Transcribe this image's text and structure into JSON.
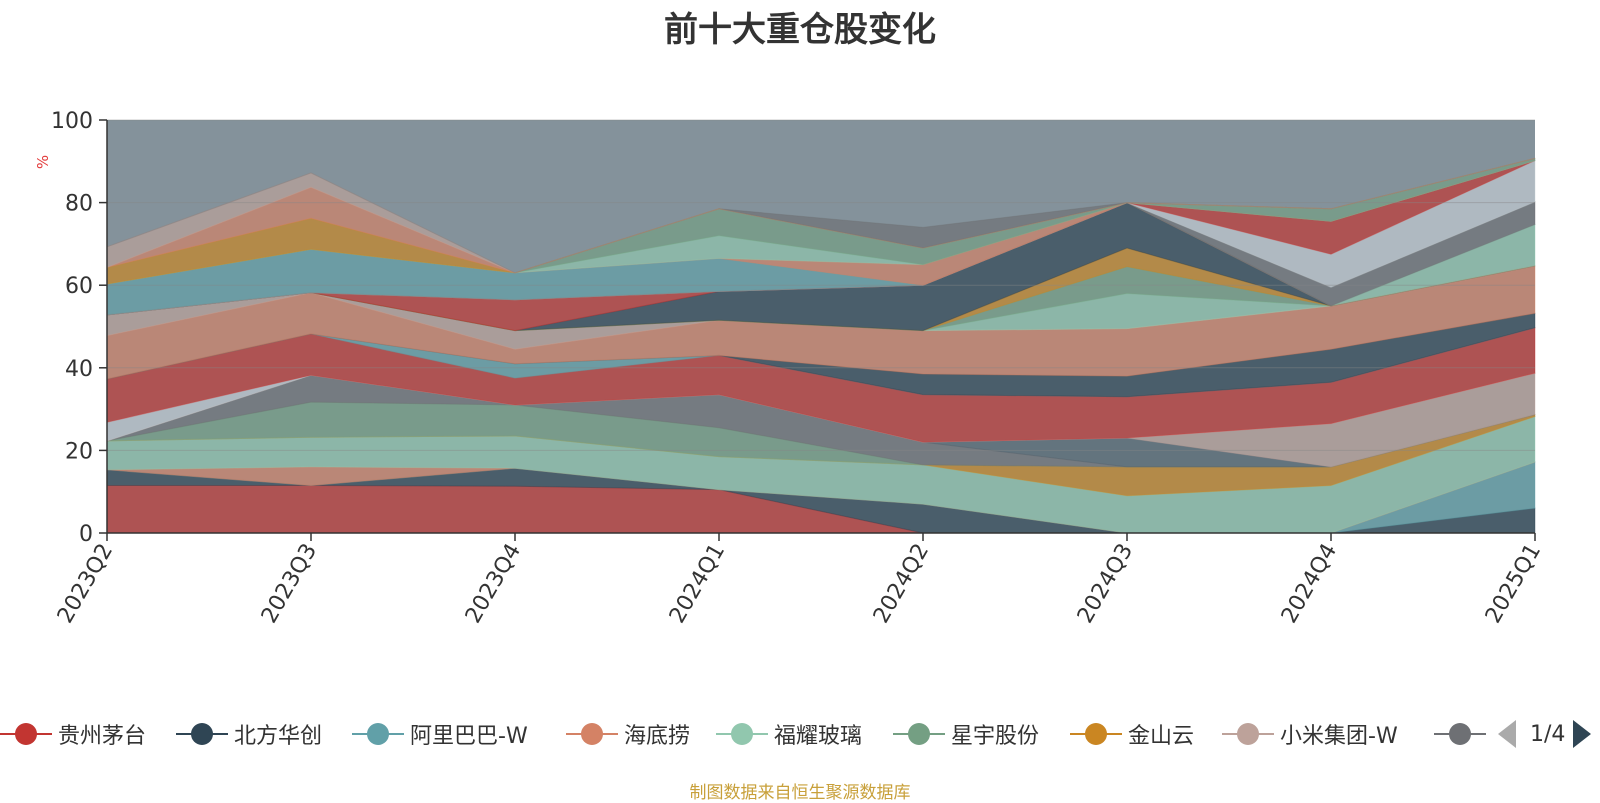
{
  "title": "前十大重仓股变化",
  "footer": "制图数据来自恒生聚源数据库",
  "pager": {
    "text": "1/4"
  },
  "legend": [
    {
      "name": "贵州茅台",
      "color": "#c23531"
    },
    {
      "name": "北方华创",
      "color": "#2f4554"
    },
    {
      "name": "阿里巴巴-W",
      "color": "#61a0a8"
    },
    {
      "name": "海底捞",
      "color": "#d48265"
    },
    {
      "name": "福耀玻璃",
      "color": "#91c7ae"
    },
    {
      "name": "星宇股份",
      "color": "#749f83"
    },
    {
      "name": "金山云",
      "color": "#ca8622"
    },
    {
      "name": "小米集团-W",
      "color": "#bda29a"
    },
    {
      "name": "",
      "color": "#6e7074"
    }
  ],
  "chart_data": {
    "type": "area",
    "stacked": true,
    "title": "前十大重仓股变化",
    "ylabel": "%",
    "ylim": [
      0,
      100
    ],
    "yticks": [
      0,
      20,
      40,
      60,
      80,
      100
    ],
    "grid": true,
    "categories": [
      "2023Q2",
      "2023Q3",
      "2023Q4",
      "2024Q1",
      "2024Q2",
      "2024Q3",
      "2024Q4",
      "2025Q1"
    ],
    "layers": [
      {
        "color": "#c23531",
        "values": [
          11.5,
          11.5,
          11.3,
          10.5,
          0,
          0,
          0,
          0
        ]
      },
      {
        "color": "#2f4554",
        "values": [
          3.8,
          0,
          4.4,
          0,
          7.0,
          0,
          0,
          6.0
        ]
      },
      {
        "color": "#61a0a8",
        "values": [
          0,
          0,
          0,
          0,
          0,
          0,
          0,
          11.2
        ]
      },
      {
        "color": "#d48265",
        "values": [
          0,
          4.5,
          0,
          0,
          0,
          0,
          0,
          0
        ]
      },
      {
        "color": "#91c7ae",
        "values": [
          7.0,
          7.2,
          7.8,
          8.0,
          9.5,
          9.0,
          11.5,
          11.0
        ]
      },
      {
        "color": "#ca8622",
        "values": [
          0,
          0,
          0,
          0,
          0,
          7.0,
          4.5,
          0.5
        ]
      },
      {
        "color": "#749f83",
        "values": [
          0,
          8.5,
          7.5,
          7.0,
          0,
          0,
          0,
          0
        ]
      },
      {
        "color": "#6e7074",
        "values": [
          0,
          6.5,
          0,
          8.0,
          5.5,
          0,
          0,
          0
        ]
      },
      {
        "color": "#546570",
        "values": [
          0,
          0,
          0,
          0,
          0,
          7.0,
          0,
          0
        ]
      },
      {
        "color": "#bda29a",
        "values": [
          0,
          0,
          0,
          0,
          0,
          0,
          10.5,
          10.0
        ]
      },
      {
        "color": "#c4ccd3",
        "values": [
          4.5,
          0,
          0,
          0,
          0,
          0,
          0,
          0
        ]
      },
      {
        "color": "#c23531",
        "values": [
          10.5,
          10.0,
          6.5,
          9.5,
          11.5,
          10.0,
          10.0,
          11.0
        ]
      },
      {
        "color": "#61a0a8",
        "values": [
          0,
          0,
          3.5,
          0,
          0,
          0,
          0,
          0
        ]
      },
      {
        "color": "#2f4554",
        "values": [
          0,
          0,
          0,
          0,
          5.0,
          5.0,
          8.0,
          3.5
        ]
      },
      {
        "color": "#d48265",
        "values": [
          10.5,
          10.0,
          3.5,
          8.5,
          10.5,
          11.5,
          10.5,
          11.5
        ]
      },
      {
        "color": "#bda29a",
        "values": [
          5.0,
          0,
          4.5,
          0,
          0,
          0,
          0,
          0
        ]
      },
      {
        "color": "#91c7ae",
        "values": [
          0,
          0,
          0,
          0,
          0,
          8.5,
          0,
          0
        ]
      },
      {
        "color": "#749f83",
        "values": [
          0,
          0,
          0,
          0,
          0,
          6.5,
          0,
          0
        ]
      },
      {
        "color": "#ca8622",
        "values": [
          0,
          0,
          0,
          0,
          0,
          4.5,
          0,
          0
        ]
      },
      {
        "color": "#2f4554",
        "values": [
          0,
          0,
          0,
          7.0,
          11.0,
          11.0,
          0,
          0
        ]
      },
      {
        "color": "#c23531",
        "values": [
          0,
          0,
          7.5,
          0,
          0,
          0,
          0,
          0
        ]
      },
      {
        "color": "#91c7ae",
        "values": [
          0,
          0,
          0,
          0,
          0,
          0,
          0,
          10.0
        ]
      },
      {
        "color": "#6e7074",
        "values": [
          0,
          0,
          0,
          0,
          0,
          0,
          4.5,
          5.5
        ]
      },
      {
        "color": "#c4ccd3",
        "values": [
          0,
          0,
          0,
          0,
          0,
          0,
          8.0,
          10.0
        ]
      },
      {
        "color": "#c23531",
        "values": [
          0,
          0,
          0,
          0,
          0,
          0,
          8.0,
          0
        ]
      },
      {
        "color": "#61a0a8",
        "values": [
          7.5,
          10.5,
          6.5,
          8.0,
          0,
          0,
          0,
          0
        ]
      },
      {
        "color": "#d48265",
        "values": [
          0,
          0,
          0,
          0,
          5.0,
          0,
          0,
          0
        ]
      },
      {
        "color": "#91c7ae",
        "values": [
          0,
          0,
          0,
          5.5,
          0,
          0,
          0,
          0
        ]
      },
      {
        "color": "#749f83",
        "values": [
          0,
          0,
          0,
          6.5,
          4.0,
          0,
          3.0,
          0.5
        ]
      },
      {
        "color": "#ca8622",
        "values": [
          4.0,
          7.5,
          0,
          0,
          0,
          0,
          0,
          0
        ]
      },
      {
        "color": "#d48265",
        "values": [
          0,
          7.5,
          0,
          0,
          0,
          0,
          0,
          0
        ]
      },
      {
        "color": "#bda29a",
        "values": [
          5.0,
          3.5,
          0,
          0,
          0,
          0,
          0,
          0
        ]
      },
      {
        "color": "#6e7074",
        "values": [
          0,
          0,
          0,
          0,
          5.0,
          0,
          0,
          0
        ]
      }
    ]
  }
}
